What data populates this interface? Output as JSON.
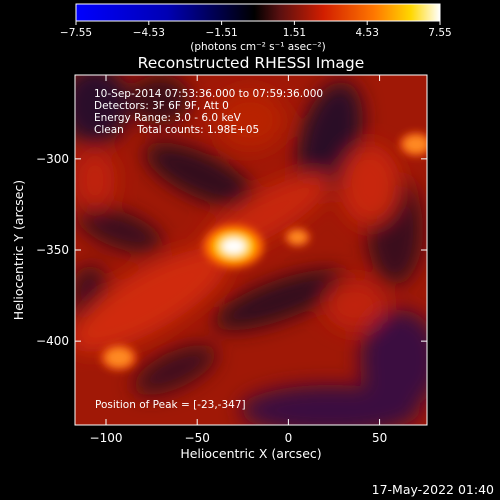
{
  "colorbar": {
    "tick_labels": [
      "-7.55",
      "-4.53",
      "-1.51",
      "1.51",
      "4.53",
      "7.55"
    ],
    "tick_values": [
      -7.55,
      -4.53,
      -1.51,
      1.51,
      4.53,
      7.55
    ],
    "range": [
      -7.55,
      7.55
    ],
    "unit_label": "(photons cm⁻² s⁻¹ asec⁻²)",
    "colormap": "RHESSI blue-white-black-red-yellow-white"
  },
  "chart_data": {
    "type": "heatmap",
    "title": "Reconstructed RHESSI Image",
    "xlabel": "Heliocentric X (arcsec)",
    "ylabel": "Heliocentric Y (arcsec)",
    "xlim": [
      -117,
      76
    ],
    "ylim": [
      -446,
      -254
    ],
    "x_ticks": [
      -100,
      -50,
      0,
      50
    ],
    "y_ticks": [
      -300,
      -350,
      -400
    ],
    "x_tick_labels": [
      "−100",
      "−50",
      "0",
      "50"
    ],
    "y_tick_labels": [
      "−300",
      "−350",
      "−400"
    ],
    "annotations": [
      "10-Sep-2014 07:53:36.000 to 07:59:36.000",
      "Detectors: 3F 6F 9F, Att 0",
      "Energy Range: 3.0 - 6.0 keV",
      "Clean    Total counts: 1.98E+05"
    ],
    "peak_label": "Position of Peak = [-23,-347]",
    "peak": {
      "x": -23,
      "y": -347
    },
    "sources": [
      {
        "x": -30,
        "y": -348,
        "intensity": 7.55
      },
      {
        "x": -93,
        "y": -409,
        "intensity": 3.6
      },
      {
        "x": 70,
        "y": -292,
        "intensity": 3.2
      },
      {
        "x": 5,
        "y": -343,
        "intensity": 1.8
      }
    ]
  },
  "footer": {
    "timestamp": "17-May-2022 01:40"
  }
}
